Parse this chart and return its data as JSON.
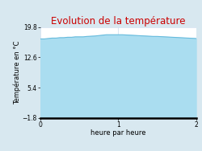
{
  "title": "Evolution de la température",
  "title_color": "#cc0000",
  "xlabel": "heure par heure",
  "ylabel": "Température en °C",
  "background_color": "#d8e8f0",
  "plot_bg_color": "#ffffff",
  "fill_color": "#aaddf0",
  "line_color": "#66bbdd",
  "ylim": [
    -1.8,
    19.8
  ],
  "xlim": [
    0,
    2
  ],
  "yticks": [
    -1.8,
    5.4,
    12.6,
    19.8
  ],
  "xticks": [
    0,
    1,
    2
  ],
  "x": [
    0.0,
    0.05,
    0.1,
    0.15,
    0.2,
    0.25,
    0.3,
    0.35,
    0.4,
    0.45,
    0.5,
    0.55,
    0.6,
    0.65,
    0.7,
    0.75,
    0.8,
    0.85,
    0.9,
    0.95,
    1.0,
    1.05,
    1.1,
    1.15,
    1.2,
    1.25,
    1.3,
    1.35,
    1.4,
    1.45,
    1.5,
    1.55,
    1.6,
    1.65,
    1.7,
    1.75,
    1.8,
    1.85,
    1.9,
    1.95,
    2.0
  ],
  "y": [
    17.0,
    17.0,
    17.1,
    17.2,
    17.2,
    17.3,
    17.3,
    17.4,
    17.4,
    17.5,
    17.5,
    17.5,
    17.6,
    17.65,
    17.7,
    17.8,
    17.9,
    18.0,
    18.0,
    18.0,
    18.0,
    18.0,
    17.95,
    17.9,
    17.85,
    17.8,
    17.75,
    17.7,
    17.65,
    17.6,
    17.6,
    17.55,
    17.5,
    17.45,
    17.4,
    17.35,
    17.3,
    17.25,
    17.2,
    17.15,
    17.1
  ],
  "baseline": -1.8,
  "grid_color": "#ccddee",
  "tick_fontsize": 5.5,
  "label_fontsize": 6,
  "title_fontsize": 8.5
}
